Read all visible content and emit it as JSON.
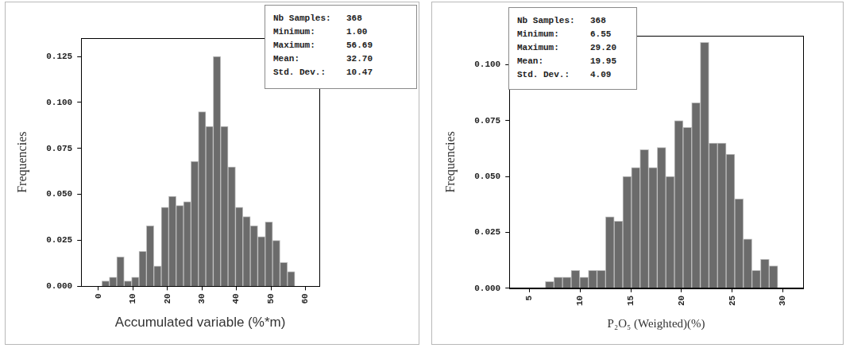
{
  "chart_data": [
    {
      "type": "histogram",
      "x_label": "Accumulated variable (%*m)",
      "y_label": "Frequencies",
      "bins": [
        1,
        3.15,
        5.3,
        7.45,
        9.6,
        11.75,
        13.9,
        16.05,
        18.2,
        20.35,
        22.5,
        24.65,
        26.8,
        28.95,
        31.1,
        33.25,
        35.4,
        37.55,
        39.7,
        41.85,
        44,
        46.15,
        48.3,
        50.45,
        52.6,
        54.75,
        56.9
      ],
      "values": [
        0.003,
        0.005,
        0.016,
        0.003,
        0.005,
        0.019,
        0.033,
        0.011,
        0.043,
        0.049,
        0.044,
        0.046,
        0.068,
        0.095,
        0.087,
        0.125,
        0.087,
        0.065,
        0.043,
        0.038,
        0.033,
        0.027,
        0.035,
        0.025,
        0.013,
        0.008
      ],
      "color": "#6b6b6b",
      "xlim": [
        -5,
        64
      ],
      "xticks": [
        0,
        10,
        20,
        30,
        40,
        50,
        60
      ],
      "ylim": [
        0,
        0.135
      ],
      "yticks": [
        {
          "value": 0,
          "label": "0.000"
        },
        {
          "value": 0.025,
          "label": "0.025"
        },
        {
          "value": 0.05,
          "label": "0.050"
        },
        {
          "value": 0.075,
          "label": "0.075"
        },
        {
          "value": 0.1,
          "label": "0.100"
        },
        {
          "value": 0.125,
          "label": "0.125"
        }
      ],
      "grid": false,
      "stats": [
        {
          "name": "Nb Samples:",
          "value": 368
        },
        {
          "name": "Minimum:",
          "value": 1,
          "value_label": "1.00"
        },
        {
          "name": "Maximum:",
          "value": 56.69
        },
        {
          "name": "Mean:",
          "value": 32.7,
          "value_label": "32.70"
        },
        {
          "name": "Std. Dev.:",
          "value": 10.47
        }
      ]
    },
    {
      "type": "histogram",
      "x_label": "P₂O₅ (Weighted)(%)",
      "y_label": "Frequencies",
      "bins": [
        6.55,
        7.4,
        8.25,
        9.1,
        9.95,
        10.8,
        11.65,
        12.5,
        13.35,
        14.2,
        15.05,
        15.9,
        16.75,
        17.6,
        18.45,
        19.3,
        20.15,
        21,
        21.85,
        22.7,
        23.55,
        24.4,
        25.25,
        26.1,
        26.95,
        27.8,
        28.65,
        29.5
      ],
      "values": [
        0.003,
        0.005,
        0.005,
        0.008,
        0.005,
        0.008,
        0.008,
        0.032,
        0.03,
        0.05,
        0.054,
        0.062,
        0.054,
        0.063,
        0.05,
        0.075,
        0.072,
        0.083,
        0.11,
        0.065,
        0.065,
        0.06,
        0.04,
        0.022,
        0.008,
        0.013,
        0.01
      ],
      "color": "#6b6b6b",
      "xlim": [
        3,
        32
      ],
      "xticks": [
        5,
        10,
        15,
        20,
        25,
        30
      ],
      "ylim": [
        0,
        0.113
      ],
      "yticks": [
        {
          "value": 0,
          "label": "0.000"
        },
        {
          "value": 0.025,
          "label": "0.025"
        },
        {
          "value": 0.05,
          "label": "0.050"
        },
        {
          "value": 0.075,
          "label": "0.075"
        },
        {
          "value": 0.1,
          "label": "0.100"
        }
      ],
      "grid": false,
      "stats": [
        {
          "name": "Nb Samples:",
          "value": 368
        },
        {
          "name": "Minimum:",
          "value": 6.55
        },
        {
          "name": "Maximum:",
          "value": 29.2,
          "value_label": "29.20"
        },
        {
          "name": "Mean:",
          "value": 19.95
        },
        {
          "name": "Std. Dev.:",
          "value": 4.09
        }
      ]
    }
  ]
}
